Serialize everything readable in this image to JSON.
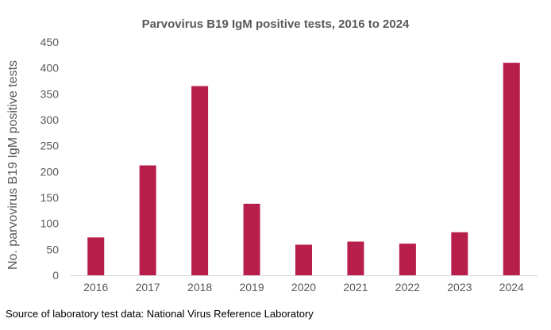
{
  "chart_data": {
    "type": "bar",
    "title": "Parvovirus B19 IgM positive tests, 2016 to 2024",
    "xlabel": "",
    "ylabel": "No. parvovirus B19 IgM positive tests",
    "categories": [
      "2016",
      "2017",
      "2018",
      "2019",
      "2020",
      "2021",
      "2022",
      "2023",
      "2024"
    ],
    "values": [
      73,
      212,
      365,
      138,
      59,
      65,
      61,
      83,
      410
    ],
    "ylim": [
      0,
      450
    ],
    "yticks": [
      0,
      50,
      100,
      150,
      200,
      250,
      300,
      350,
      400,
      450
    ],
    "bar_color": "#B81E4B",
    "grid": false
  },
  "footer": {
    "source": "Source of laboratory test data: National Virus Reference Laboratory"
  }
}
